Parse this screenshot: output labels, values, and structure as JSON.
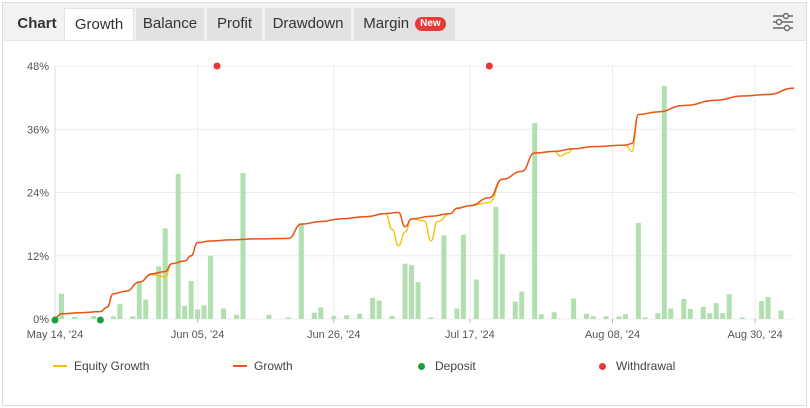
{
  "tabs": [
    {
      "id": "chart",
      "label": "Chart",
      "style": "label-only"
    },
    {
      "id": "growth",
      "label": "Growth",
      "style": "active"
    },
    {
      "id": "balance",
      "label": "Balance",
      "style": "inactive"
    },
    {
      "id": "profit",
      "label": "Profit",
      "style": "inactive"
    },
    {
      "id": "drawdown",
      "label": "Drawdown",
      "style": "inactive"
    },
    {
      "id": "margin",
      "label": "Margin",
      "style": "inactive",
      "badge": "New"
    }
  ],
  "toolbar": {
    "settings_icon": "settings-sliders-icon"
  },
  "colors": {
    "equity": "#f2c200",
    "growth": "#e8541e",
    "bars": "#b2dfb0",
    "deposit": "#1aa03f",
    "withdrawal": "#e53935",
    "grid": "#ececec",
    "axis_text": "#555555",
    "badge": "#e53935"
  },
  "legend": [
    {
      "label": "Equity Growth",
      "kind": "line",
      "color": "#f2c200"
    },
    {
      "label": "Growth",
      "kind": "line",
      "color": "#e8541e"
    },
    {
      "label": "Deposit",
      "kind": "dot",
      "color": "#1aa03f"
    },
    {
      "label": "Withdrawal",
      "kind": "dot",
      "color": "#e53935"
    }
  ],
  "chart_data": {
    "type": "line",
    "ylim": [
      0,
      48
    ],
    "yticks": [
      "0%",
      "12%",
      "24%",
      "36%",
      "48%"
    ],
    "xlim": [
      "2024-05-14",
      "2024-09-05"
    ],
    "xticks": [
      {
        "label": "May 14, '24",
        "date": "2024-05-14"
      },
      {
        "label": "Jun 05, '24",
        "date": "2024-06-05"
      },
      {
        "label": "Jun 26, '24",
        "date": "2024-06-26"
      },
      {
        "label": "Jul 17, '24",
        "date": "2024-07-17"
      },
      {
        "label": "Aug 08, '24",
        "date": "2024-08-08"
      },
      {
        "label": "Aug 30, '24",
        "date": "2024-08-30"
      }
    ],
    "grid": true,
    "legend_position": "bottom",
    "series": [
      {
        "name": "Growth",
        "points": [
          [
            "2024-05-14",
            0.2
          ],
          [
            "2024-05-15",
            1.0
          ],
          [
            "2024-05-18",
            1.2
          ],
          [
            "2024-05-21",
            1.4
          ],
          [
            "2024-05-22",
            2.2
          ],
          [
            "2024-05-23",
            4.8
          ],
          [
            "2024-05-25",
            5.3
          ],
          [
            "2024-05-27",
            7.0
          ],
          [
            "2024-05-29",
            8.6
          ],
          [
            "2024-05-31",
            9.0
          ],
          [
            "2024-06-01",
            10.5
          ],
          [
            "2024-06-03",
            11.0
          ],
          [
            "2024-06-04",
            12.0
          ],
          [
            "2024-06-05",
            14.5
          ],
          [
            "2024-06-07",
            14.8
          ],
          [
            "2024-06-10",
            15.0
          ],
          [
            "2024-06-14",
            15.2
          ],
          [
            "2024-06-19",
            15.3
          ],
          [
            "2024-06-21",
            18.0
          ],
          [
            "2024-06-24",
            18.5
          ],
          [
            "2024-06-27",
            19.0
          ],
          [
            "2024-07-01",
            19.4
          ],
          [
            "2024-07-04",
            20.0
          ],
          [
            "2024-07-06",
            20.2
          ],
          [
            "2024-07-07",
            17.5
          ],
          [
            "2024-07-08",
            19.0
          ],
          [
            "2024-07-11",
            19.5
          ],
          [
            "2024-07-14",
            20.0
          ],
          [
            "2024-07-15",
            21.0
          ],
          [
            "2024-07-17",
            21.5
          ],
          [
            "2024-07-20",
            23.0
          ],
          [
            "2024-07-22",
            26.5
          ],
          [
            "2024-07-25",
            28.0
          ],
          [
            "2024-07-27",
            31.5
          ],
          [
            "2024-07-30",
            31.8
          ],
          [
            "2024-08-02",
            32.3
          ],
          [
            "2024-08-05",
            32.7
          ],
          [
            "2024-08-10",
            33.0
          ],
          [
            "2024-08-11",
            33.3
          ],
          [
            "2024-08-12",
            38.8
          ],
          [
            "2024-08-15",
            39.3
          ],
          [
            "2024-08-19",
            40.5
          ],
          [
            "2024-08-24",
            41.5
          ],
          [
            "2024-08-28",
            42.3
          ],
          [
            "2024-09-01",
            42.6
          ],
          [
            "2024-09-05",
            43.8
          ]
        ]
      },
      {
        "name": "Equity Growth",
        "points": [
          [
            "2024-05-14",
            0.2
          ],
          [
            "2024-05-15",
            1.0
          ],
          [
            "2024-05-18",
            1.2
          ],
          [
            "2024-05-21",
            1.4
          ],
          [
            "2024-05-22",
            2.2
          ],
          [
            "2024-05-23",
            4.8
          ],
          [
            "2024-05-25",
            5.3
          ],
          [
            "2024-05-27",
            7.0
          ],
          [
            "2024-05-29",
            8.4
          ],
          [
            "2024-05-31",
            8.0
          ],
          [
            "2024-06-01",
            10.5
          ],
          [
            "2024-06-03",
            11.0
          ],
          [
            "2024-06-04",
            12.0
          ],
          [
            "2024-06-05",
            14.5
          ],
          [
            "2024-06-07",
            14.8
          ],
          [
            "2024-06-10",
            15.0
          ],
          [
            "2024-06-14",
            15.2
          ],
          [
            "2024-06-19",
            15.3
          ],
          [
            "2024-06-21",
            18.0
          ],
          [
            "2024-06-24",
            18.5
          ],
          [
            "2024-06-27",
            19.0
          ],
          [
            "2024-07-01",
            19.4
          ],
          [
            "2024-07-04",
            20.0
          ],
          [
            "2024-07-05",
            17.0
          ],
          [
            "2024-07-06",
            13.9
          ],
          [
            "2024-07-07",
            16.5
          ],
          [
            "2024-07-08",
            19.0
          ],
          [
            "2024-07-10",
            18.6
          ],
          [
            "2024-07-11",
            14.8
          ],
          [
            "2024-07-12",
            18.5
          ],
          [
            "2024-07-14",
            20.0
          ],
          [
            "2024-07-15",
            21.0
          ],
          [
            "2024-07-17",
            21.5
          ],
          [
            "2024-07-20",
            22.1
          ],
          [
            "2024-07-22",
            26.5
          ],
          [
            "2024-07-25",
            28.0
          ],
          [
            "2024-07-27",
            31.5
          ],
          [
            "2024-07-30",
            31.8
          ],
          [
            "2024-07-31",
            30.9
          ],
          [
            "2024-08-01",
            31.5
          ],
          [
            "2024-08-02",
            32.3
          ],
          [
            "2024-08-05",
            32.7
          ],
          [
            "2024-08-10",
            33.0
          ],
          [
            "2024-08-11",
            31.8
          ],
          [
            "2024-08-12",
            38.8
          ],
          [
            "2024-08-15",
            39.3
          ],
          [
            "2024-08-19",
            40.5
          ],
          [
            "2024-08-24",
            41.5
          ],
          [
            "2024-08-28",
            42.3
          ],
          [
            "2024-09-01",
            42.6
          ],
          [
            "2024-09-05",
            43.8
          ]
        ]
      },
      {
        "name": "Profit bars",
        "kind": "bar",
        "points": [
          [
            "2024-05-15",
            4.8
          ],
          [
            "2024-05-17",
            0.4
          ],
          [
            "2024-05-20",
            0.6
          ],
          [
            "2024-05-23",
            0.5
          ],
          [
            "2024-05-24",
            2.8
          ],
          [
            "2024-05-26",
            0.5
          ],
          [
            "2024-05-27",
            7.2
          ],
          [
            "2024-05-28",
            3.7
          ],
          [
            "2024-05-30",
            10.0
          ],
          [
            "2024-05-31",
            17.2
          ],
          [
            "2024-06-02",
            27.5
          ],
          [
            "2024-06-03",
            2.5
          ],
          [
            "2024-06-04",
            7.2
          ],
          [
            "2024-06-05",
            1.8
          ],
          [
            "2024-06-06",
            2.6
          ],
          [
            "2024-06-07",
            12.0
          ],
          [
            "2024-06-09",
            2.0
          ],
          [
            "2024-06-11",
            0.8
          ],
          [
            "2024-06-12",
            27.7
          ],
          [
            "2024-06-16",
            0.8
          ],
          [
            "2024-06-19",
            0.3
          ],
          [
            "2024-06-21",
            18.2
          ],
          [
            "2024-06-23",
            1.2
          ],
          [
            "2024-06-24",
            2.2
          ],
          [
            "2024-06-26",
            0.6
          ],
          [
            "2024-06-28",
            0.7
          ],
          [
            "2024-06-30",
            1.0
          ],
          [
            "2024-07-02",
            4.0
          ],
          [
            "2024-07-03",
            3.5
          ],
          [
            "2024-07-05",
            0.6
          ],
          [
            "2024-07-07",
            10.5
          ],
          [
            "2024-07-08",
            10.2
          ],
          [
            "2024-07-09",
            7.0
          ],
          [
            "2024-07-11",
            0.3
          ],
          [
            "2024-07-13",
            15.9
          ],
          [
            "2024-07-15",
            2.0
          ],
          [
            "2024-07-16",
            16.0
          ],
          [
            "2024-07-18",
            7.5
          ],
          [
            "2024-07-21",
            21.3
          ],
          [
            "2024-07-22",
            12.3
          ],
          [
            "2024-07-24",
            3.3
          ],
          [
            "2024-07-25",
            5.2
          ],
          [
            "2024-07-27",
            37.2
          ],
          [
            "2024-07-28",
            0.9
          ],
          [
            "2024-07-30",
            1.3
          ],
          [
            "2024-08-02",
            3.9
          ],
          [
            "2024-08-04",
            1.0
          ],
          [
            "2024-08-05",
            0.5
          ],
          [
            "2024-08-07",
            0.5
          ],
          [
            "2024-08-09",
            0.5
          ],
          [
            "2024-08-10",
            0.9
          ],
          [
            "2024-08-12",
            18.2
          ],
          [
            "2024-08-13",
            0.3
          ],
          [
            "2024-08-15",
            1.1
          ],
          [
            "2024-08-16",
            44.2
          ],
          [
            "2024-08-17",
            2.0
          ],
          [
            "2024-08-19",
            3.8
          ],
          [
            "2024-08-20",
            1.9
          ],
          [
            "2024-08-22",
            2.3
          ],
          [
            "2024-08-23",
            1.1
          ],
          [
            "2024-08-24",
            3.0
          ],
          [
            "2024-08-25",
            1.1
          ],
          [
            "2024-08-26",
            4.7
          ],
          [
            "2024-08-28",
            0.3
          ],
          [
            "2024-08-31",
            3.4
          ],
          [
            "2024-09-01",
            4.2
          ],
          [
            "2024-09-03",
            1.6
          ]
        ]
      }
    ],
    "deposits": [
      "2024-05-14",
      "2024-05-21"
    ],
    "withdrawals": [
      "2024-06-08",
      "2024-07-20"
    ]
  }
}
